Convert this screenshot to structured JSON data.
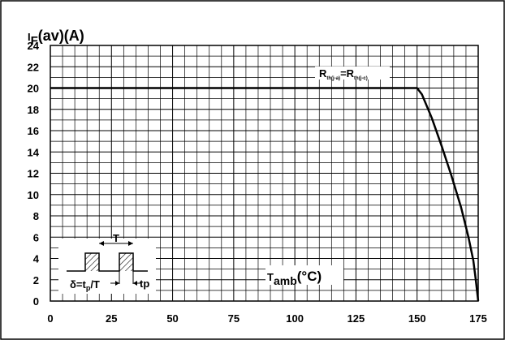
{
  "chart_data": {
    "type": "line",
    "title": "",
    "ylabel": {
      "base": "I",
      "sub": "F",
      "rest": "(av)(A)"
    },
    "xlabel": {
      "base": "T",
      "sub": "amb",
      "rest": "(°C)"
    },
    "xlim": [
      0,
      175
    ],
    "ylim": [
      0,
      24
    ],
    "x_ticks": [
      0,
      25,
      50,
      75,
      100,
      125,
      150,
      175
    ],
    "y_ticks": [
      0,
      2,
      4,
      6,
      8,
      10,
      12,
      14,
      16,
      18,
      20,
      22,
      24
    ],
    "grid": true,
    "minor_grid": {
      "x_step": 5,
      "y_step": 1
    },
    "series": [
      {
        "x": [
          0,
          150,
          152,
          156,
          160,
          164,
          168,
          171,
          173,
          174,
          175
        ],
        "y": [
          20,
          20,
          19.4,
          17.2,
          14.6,
          11.8,
          8.8,
          6.0,
          3.8,
          2.0,
          0
        ]
      }
    ],
    "annotation": {
      "R1": "R",
      "R1sub": "th(j-a)",
      "eq": "=",
      "R2": "R",
      "R2sub": "th(j-c)"
    },
    "inset": {
      "period_label": "T",
      "pulse_label": "tp",
      "duty": {
        "base": "δ=t",
        "sub": "p",
        "rest": "/T"
      }
    }
  }
}
